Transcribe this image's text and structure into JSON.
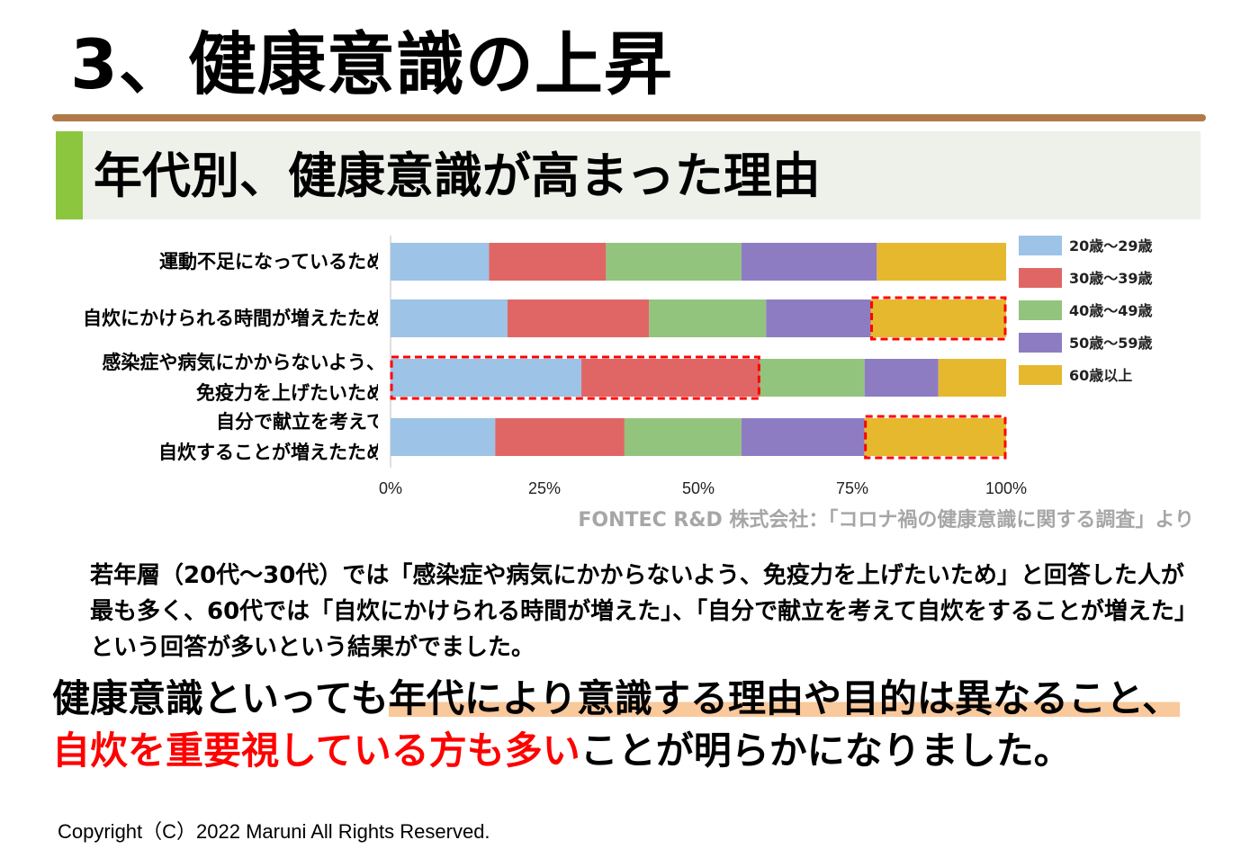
{
  "title": "3、健康意識の上昇",
  "subtitle": "年代別、健康意識が高まった理由",
  "colors": {
    "title_rule": "#b07a4a",
    "subtitle_band": "#eef0ea",
    "subtitle_accent": "#8cc63f",
    "highlight_box": "#ff0000",
    "conclusion_red": "#ff0000",
    "underline": "#f9c89b"
  },
  "chart_data": {
    "type": "bar",
    "orientation": "horizontal",
    "stacked": true,
    "categories": [
      [
        "運動不足になっているため"
      ],
      [
        "自炊にかけられる時間が増えたため"
      ],
      [
        "感染症や病気にかからないよう、",
        "免疫力を上げたいため"
      ],
      [
        "自分で献立を考えて",
        "自炊することが増えたため"
      ]
    ],
    "series": [
      {
        "name": "20歳～29歳",
        "color": "#9dc3e6",
        "values": [
          16,
          19,
          31,
          17
        ]
      },
      {
        "name": "30歳～39歳",
        "color": "#e06666",
        "values": [
          19,
          23,
          29,
          21
        ]
      },
      {
        "name": "40歳～49歳",
        "color": "#93c47d",
        "values": [
          22,
          19,
          17,
          19
        ]
      },
      {
        "name": "50歳～59歳",
        "color": "#8e7cc3",
        "values": [
          22,
          17,
          12,
          20
        ]
      },
      {
        "name": "60歳以上",
        "color": "#e6b82e",
        "values": [
          21,
          22,
          11,
          23
        ]
      }
    ],
    "xlim": [
      0,
      100
    ],
    "xticks": [
      "0%",
      "25%",
      "50%",
      "75%",
      "100%"
    ],
    "legend_position": "right",
    "highlights": [
      {
        "category_index": 1,
        "series": [
          "60歳以上"
        ]
      },
      {
        "category_index": 2,
        "series": [
          "20歳～29歳",
          "30歳～39歳"
        ]
      },
      {
        "category_index": 3,
        "series": [
          "60歳以上"
        ]
      }
    ]
  },
  "source": "FONTEC R&D 株式会社：「コロナ禍の健康意識に関する調査」より",
  "body_text": "若年層（20代～30代）では「感染症や病気にかからないよう、免疫力を上げたいため」と回答した人が最も多く、60代では「自炊にかけられる時間が増えた」、「自分で献立を考えて自炊をすることが増えた」という回答が多いという結果がでました。",
  "conclusion": {
    "part1": "健康意識といっても",
    "part2_highlight": "年代により意識する理由や目的は異なること、",
    "part3_red": "自炊を重要視している方も多い",
    "part4": "ことが明らかになりました。"
  },
  "copyright": "Copyright（C）2022 Maruni All Rights Reserved."
}
